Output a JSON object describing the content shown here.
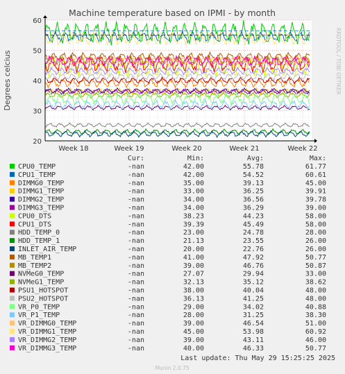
{
  "chart_data": {
    "type": "line",
    "title": "Machine temperature based on IPMI - by month",
    "ylabel": "Degrees celcius",
    "side_label": "RRDTOOL / TOBI OETIKER",
    "ylim": [
      20,
      60
    ],
    "yticks": [
      20,
      30,
      40,
      50,
      60
    ],
    "xticks": [
      "Week 18",
      "Week 19",
      "Week 20",
      "Week 21",
      "Week 22"
    ],
    "grid": true,
    "legend_placement": "bottom",
    "columns": [
      "Cur:",
      "Min:",
      "Avg:",
      "Max:"
    ],
    "series": [
      {
        "name": "CPU0_TEMP",
        "color": "#00cc00",
        "cur": "-nan",
        "min": "42.00",
        "avg": "55.78",
        "max": "61.77",
        "level": 55.78,
        "amp": 2.6
      },
      {
        "name": "CPU1_TEMP",
        "color": "#0066b3",
        "cur": "-nan",
        "min": "42.00",
        "avg": "54.52",
        "max": "60.61",
        "level": 54.52,
        "amp": 1.2
      },
      {
        "name": "DIMMG0_TEMP",
        "color": "#ff8000",
        "cur": "-nan",
        "min": "35.00",
        "avg": "39.13",
        "max": "45.00",
        "level": 39.13,
        "amp": 1.0
      },
      {
        "name": "DIMMG1_TEMP",
        "color": "#ffcc00",
        "cur": "-nan",
        "min": "33.00",
        "avg": "36.25",
        "max": "39.91",
        "level": 36.25,
        "amp": 0.8
      },
      {
        "name": "DIMMG2_TEMP",
        "color": "#330099",
        "cur": "-nan",
        "min": "34.00",
        "avg": "36.56",
        "max": "39.78",
        "level": 36.56,
        "amp": 0.6
      },
      {
        "name": "DIMMG3_TEMP",
        "color": "#990099",
        "cur": "-nan",
        "min": "34.00",
        "avg": "36.29",
        "max": "39.00",
        "level": 36.29,
        "amp": 0.6
      },
      {
        "name": "CPU0_DTS",
        "color": "#ccff00",
        "cur": "-nan",
        "min": "38.23",
        "avg": "44.23",
        "max": "58.00",
        "level": 44.23,
        "amp": 2.2
      },
      {
        "name": "CPU1_DTS",
        "color": "#ff0000",
        "cur": "-nan",
        "min": "39.39",
        "avg": "45.49",
        "max": "58.00",
        "level": 45.49,
        "amp": 2.0
      },
      {
        "name": "HDD_TEMP_0",
        "color": "#808080",
        "cur": "-nan",
        "min": "23.00",
        "avg": "24.78",
        "max": "28.00",
        "level": 25.2,
        "amp": 0.5
      },
      {
        "name": "HDD_TEMP_1",
        "color": "#008f00",
        "cur": "-nan",
        "min": "21.13",
        "avg": "23.55",
        "max": "26.00",
        "level": 23.0,
        "amp": 0.6
      },
      {
        "name": "INLET_AIR_TEMP",
        "color": "#00487d",
        "cur": "-nan",
        "min": "20.00",
        "avg": "22.76",
        "max": "26.00",
        "level": 22.3,
        "amp": 0.7
      },
      {
        "name": "MB_TEMP1",
        "color": "#b35a00",
        "cur": "-nan",
        "min": "41.00",
        "avg": "47.92",
        "max": "50.77",
        "level": 47.92,
        "amp": 0.9
      },
      {
        "name": "MB_TEMP2",
        "color": "#b38f00",
        "cur": "-nan",
        "min": "39.00",
        "avg": "46.76",
        "max": "50.87",
        "level": 46.76,
        "amp": 1.1
      },
      {
        "name": "NVMeG0_TEMP",
        "color": "#6b006b",
        "cur": "-nan",
        "min": "27.07",
        "avg": "29.94",
        "max": "33.00",
        "level": 31.0,
        "amp": 0.5
      },
      {
        "name": "NVMeG1_TEMP",
        "color": "#8fb300",
        "cur": "-nan",
        "min": "32.13",
        "avg": "35.12",
        "max": "38.62",
        "level": 35.12,
        "amp": 0.6
      },
      {
        "name": "PSU1_HOTSPOT",
        "color": "#b30000",
        "cur": "-nan",
        "min": "38.00",
        "avg": "40.04",
        "max": "48.00",
        "level": 40.04,
        "amp": 0.7
      },
      {
        "name": "PSU2_HOTSPOT",
        "color": "#bebebe",
        "cur": "-nan",
        "min": "36.13",
        "avg": "41.25",
        "max": "48.00",
        "level": 41.25,
        "amp": 0.8
      },
      {
        "name": "VR_P0_TEMP",
        "color": "#80ff80",
        "cur": "-nan",
        "min": "29.00",
        "avg": "34.02",
        "max": "40.88",
        "level": 34.02,
        "amp": 1.4
      },
      {
        "name": "VR_P1_TEMP",
        "color": "#80c9ff",
        "cur": "-nan",
        "min": "28.00",
        "avg": "31.25",
        "max": "38.30",
        "level": 32.0,
        "amp": 1.0
      },
      {
        "name": "VR_DIMMG0_TEMP",
        "color": "#ffc080",
        "cur": "-nan",
        "min": "39.00",
        "avg": "46.54",
        "max": "51.00",
        "level": 46.54,
        "amp": 1.0
      },
      {
        "name": "VR_DIMMG1_TEMP",
        "color": "#ffe680",
        "cur": "-nan",
        "min": "45.00",
        "avg": "53.98",
        "max": "60.92",
        "level": 53.98,
        "amp": 1.6
      },
      {
        "name": "VR_DIMMG2_TEMP",
        "color": "#aa80ff",
        "cur": "-nan",
        "min": "39.00",
        "avg": "43.11",
        "max": "46.00",
        "level": 43.11,
        "amp": 0.8
      },
      {
        "name": "VR_DIMMG3_TEMP",
        "color": "#ee00cc",
        "cur": "-nan",
        "min": "40.00",
        "avg": "46.33",
        "max": "50.77",
        "level": 46.33,
        "amp": 1.2
      }
    ],
    "thresholds": [
      {
        "value": 55,
        "color": "#000000"
      },
      {
        "value": 56.5,
        "color": "#0066b3"
      }
    ],
    "last_update": "Last update: Thu May 29 15:25:25 2025",
    "footer": "Munin 2.0.75"
  },
  "colors": {
    "background": "#f0f0f0",
    "plot_background": "#ffffff",
    "grid_major": "#ff9999",
    "grid_minor": "#dddddd",
    "axis": "#000000",
    "faint_text": "#bbbbbb"
  }
}
